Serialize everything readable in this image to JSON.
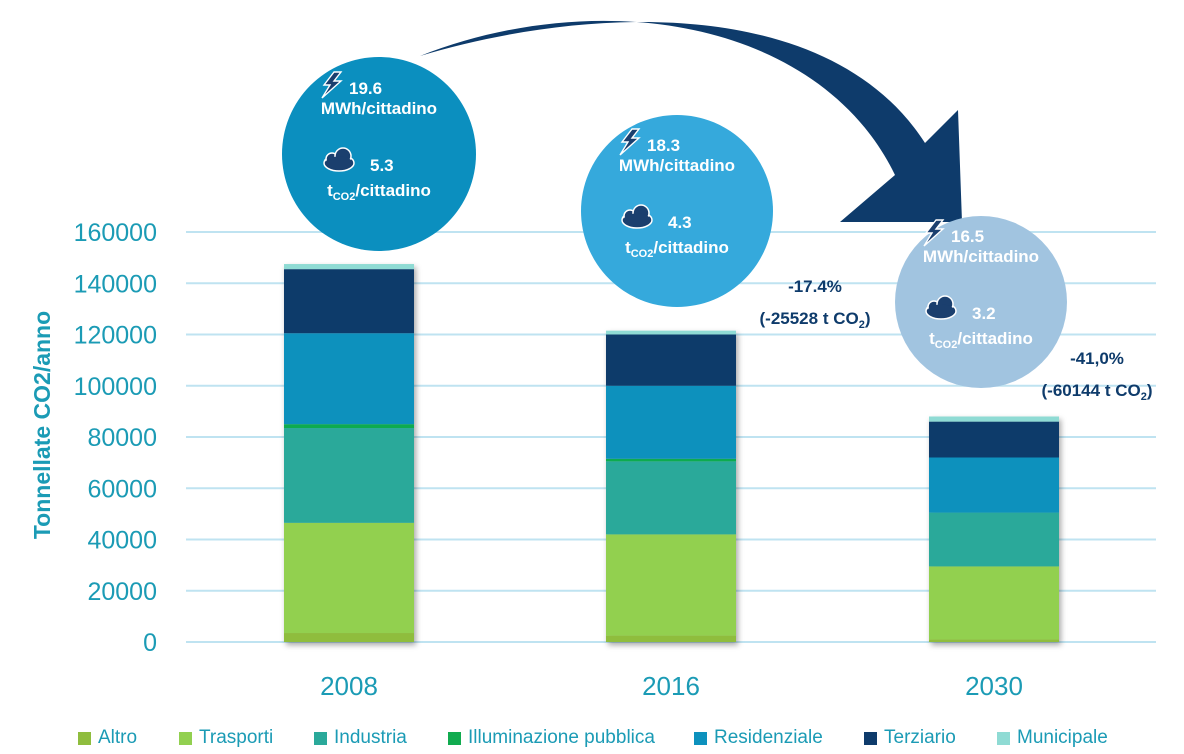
{
  "chart_data": {
    "type": "bar",
    "stacked": true,
    "categories": [
      "2008",
      "2016",
      "2030"
    ],
    "ylabel": "Tonnellate CO2/anno",
    "ylim": [
      0,
      160000
    ],
    "yticks": [
      0,
      20000,
      40000,
      60000,
      80000,
      100000,
      120000,
      140000,
      160000
    ],
    "grid": true,
    "legend_position": "bottom",
    "series": [
      {
        "name": "Altro",
        "color": "#8fbd3e",
        "values": [
          3500,
          2500,
          1000
        ]
      },
      {
        "name": "Trasporti",
        "color": "#92d050",
        "values": [
          43000,
          39500,
          28500
        ]
      },
      {
        "name": "Industria",
        "color": "#2aa99a",
        "values": [
          37000,
          28500,
          21000
        ]
      },
      {
        "name": "Illuminazione pubblica",
        "color": "#11ab4f",
        "values": [
          1500,
          1000,
          0
        ]
      },
      {
        "name": "Residenziale",
        "color": "#0d91bd",
        "values": [
          35500,
          28500,
          21500
        ]
      },
      {
        "name": "Terziario",
        "color": "#0e3b6b",
        "values": [
          25000,
          20000,
          14000
        ]
      },
      {
        "name": "Municipale",
        "color": "#8fdbd4",
        "values": [
          2000,
          1500,
          2000
        ]
      }
    ],
    "bubbles": [
      {
        "energy": "19.6",
        "energy_unit": "MWh/cittadino",
        "co2": "5.3",
        "co2_unit_prefix": "t",
        "co2_unit_sub": "CO2",
        "co2_unit_suffix": "/cittadino",
        "color": "#0b8fbf"
      },
      {
        "energy": "18.3",
        "energy_unit": "MWh/cittadino",
        "co2": "4.3",
        "co2_unit_prefix": "t",
        "co2_unit_sub": "CO2",
        "co2_unit_suffix": "/cittadino",
        "color": "#35a9dc"
      },
      {
        "energy": "16.5",
        "energy_unit": "MWh/cittadino",
        "co2": "3.2",
        "co2_unit_prefix": "t",
        "co2_unit_sub": "CO2",
        "co2_unit_suffix": "/cittadino",
        "color": "#a1c4e0"
      }
    ],
    "annotations": [
      {
        "pct": "-17.4%",
        "detail_prefix": "(-25528 t CO",
        "detail_sub": "2",
        "detail_suffix": ")"
      },
      {
        "pct": "-41,0%",
        "detail_prefix": "(-60144 t CO",
        "detail_sub": "2",
        "detail_suffix": ")"
      }
    ],
    "colors": {
      "axis_text": "#1b9bb5",
      "grid": "#bfe3f1",
      "arrow": "#0e3b6b",
      "annotation_text": "#0e3b6b",
      "bubble_text": "#ffffff"
    }
  }
}
